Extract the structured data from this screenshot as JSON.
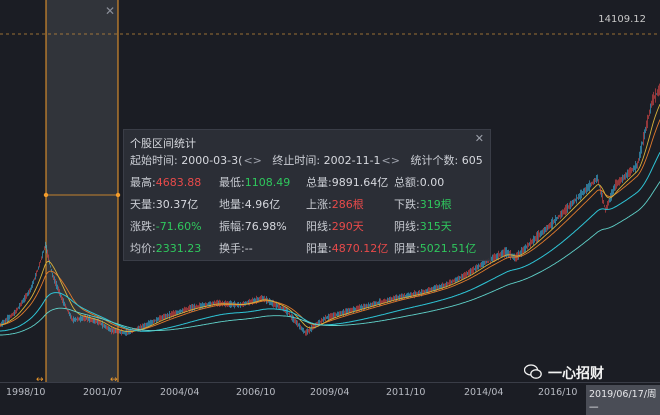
{
  "price_level": "14109.12",
  "stats_panel": {
    "title": "个股区间统计",
    "start_label": "起始时间:",
    "start_value": "2000-03-3(",
    "end_label": "终止时间:",
    "end_value": "2002-11-1",
    "count_label": "统计个数:",
    "count_value": "605",
    "rows": [
      [
        {
          "label": "最高:",
          "value": "4683.88",
          "color": "red"
        },
        {
          "label": "最低:",
          "value": "1108.49",
          "color": "green"
        },
        {
          "label": "总量:",
          "value": "9891.64亿",
          "color": "white"
        },
        {
          "label": "总额:",
          "value": "0.00",
          "color": "white"
        }
      ],
      [
        {
          "label": "天量:",
          "value": "30.37亿",
          "color": "white"
        },
        {
          "label": "地量:",
          "value": "4.96亿",
          "color": "white"
        },
        {
          "label": "上涨:",
          "value": "286根",
          "color": "red"
        },
        {
          "label": "下跌:",
          "value": "319根",
          "color": "green"
        }
      ],
      [
        {
          "label": "涨跌:",
          "value": "-71.60%",
          "color": "green"
        },
        {
          "label": "振幅:",
          "value": "76.98%",
          "color": "white"
        },
        {
          "label": "阳线:",
          "value": "290天",
          "color": "red"
        },
        {
          "label": "阴线:",
          "value": "315天",
          "color": "green"
        }
      ],
      [
        {
          "label": "均价:",
          "value": "2331.23",
          "color": "green"
        },
        {
          "label": "换手:",
          "value": "--",
          "color": "white"
        },
        {
          "label": "阳量:",
          "value": "4870.12亿",
          "color": "red"
        },
        {
          "label": "阴量:",
          "value": "5021.51亿",
          "color": "green"
        }
      ]
    ]
  },
  "x_axis": [
    "1998/10",
    "2001/07",
    "2004/04",
    "2006/10",
    "2009/04",
    "2011/10",
    "2014/04",
    "2016/10",
    "2019/06/17/周一"
  ],
  "watermark": "一心招财",
  "icons": {
    "close": "close-icon",
    "wechat": "wechat-icon",
    "range_handle": "range-handle-icon"
  },
  "colors": {
    "up": "#e84a4a",
    "down": "#2fc75d",
    "ma_cyan": "#2ec4d6",
    "ma_yellow": "#d8b13a",
    "ma_orange": "#e07a2c",
    "selection": "#f39c2b"
  }
}
